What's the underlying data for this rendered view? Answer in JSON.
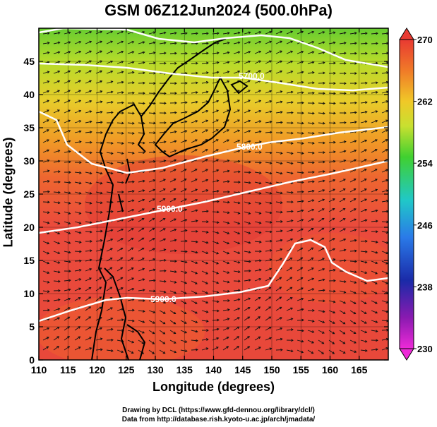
{
  "title": "GSM 06Z12Jun2024 (500.0hPa)",
  "xlabel": "Longitude (degrees)",
  "ylabel": "Latitude  (degrees)",
  "x_ticks": [
    "110",
    "115",
    "120",
    "125",
    "130",
    "135",
    "140",
    "145",
    "150",
    "155",
    "160",
    "165"
  ],
  "y_ticks": [
    "0",
    "5",
    "10",
    "15",
    "20",
    "25",
    "30",
    "35",
    "40",
    "45"
  ],
  "colorbar": {
    "ticks": [
      "230",
      "238",
      "246",
      "254",
      "262",
      "270"
    ],
    "min": 230,
    "max": 270
  },
  "contour_labels": [
    "5700.0",
    "5800.0",
    "5900.0",
    "5900.0"
  ],
  "credits": {
    "line1": "Drawing by DCL (https://www.gfd-dennou.org/library/dcl/)",
    "line2": "Data from http://database.rish.kyoto-u.ac.jp/arch/jmadata/"
  },
  "colors": {
    "warm": "#e8463a",
    "orange": "#f07a28",
    "yellow": "#e8d82a",
    "green": "#56c832",
    "contour": "#ffffff"
  }
}
